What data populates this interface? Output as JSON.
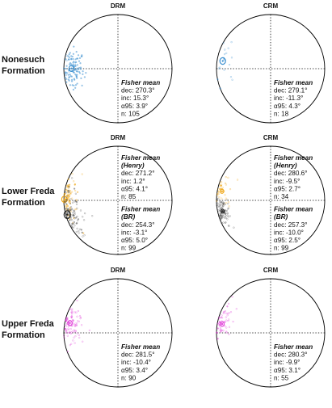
{
  "column_titles": [
    "DRM",
    "CRM"
  ],
  "formations": [
    {
      "label_lines": [
        "Nonesuch",
        "Formation"
      ],
      "panels": [
        {
          "title": "DRM",
          "color": "#3a8fd0",
          "stats": [
            {
              "header": "Fisher mean",
              "header2": "",
              "dec": "dec: 270.3°",
              "inc": "inc: 15.3°",
              "a95": "α95: 3.9°",
              "n": "n: 105",
              "mean_dec": 270.3,
              "mean_inc": 15.3,
              "alpha95": 3.9,
              "count": 105,
              "color": "#3a8fd0"
            }
          ]
        },
        {
          "title": "CRM",
          "color": "#3a8fd0",
          "stats": [
            {
              "header": "Fisher mean",
              "header2": "",
              "dec": "dec: 279.1°",
              "inc": "inc: -11.3°",
              "a95": "α95: 4.3°",
              "n": "n: 18",
              "mean_dec": 279.1,
              "mean_inc": -11.3,
              "alpha95": 4.3,
              "count": 18,
              "color": "#3a8fd0"
            }
          ]
        }
      ]
    },
    {
      "label_lines": [
        "Lower Freda",
        "Formation"
      ],
      "panels": [
        {
          "title": "DRM",
          "color": "#f0a818",
          "stats": [
            {
              "header": "Fisher mean",
              "header2": "(Henry)",
              "dec": "dec: 271.2°",
              "inc": "inc: 1.2°",
              "a95": "α95: 4.1°",
              "n": "n: 85",
              "mean_dec": 271.2,
              "mean_inc": 1.2,
              "alpha95": 4.1,
              "count": 85,
              "color": "#f0a818"
            },
            {
              "header": "Fisher mean",
              "header2": "(BR)",
              "dec": "dec: 254.3°",
              "inc": "inc: -3.1°",
              "a95": "α95: 5.0°",
              "n": "n: 99",
              "mean_dec": 254.3,
              "mean_inc": -3.1,
              "alpha95": 5.0,
              "count": 99,
              "color": "#555555"
            }
          ]
        },
        {
          "title": "CRM",
          "color": "#f0a818",
          "stats": [
            {
              "header": "Fisher mean",
              "header2": "(Henry)",
              "dec": "dec: 280.6°",
              "inc": "inc: -9.5°",
              "a95": "α95: 2.7°",
              "n": "n: 34",
              "mean_dec": 280.6,
              "mean_inc": -9.5,
              "alpha95": 2.7,
              "count": 34,
              "color": "#f0a818"
            },
            {
              "header": "Fisher mean",
              "header2": "(BR)",
              "dec": "dec: 257.3°",
              "inc": "inc: -10.0°",
              "a95": "α95: 2.5°",
              "n": "n: 99",
              "mean_dec": 257.3,
              "mean_inc": -10.0,
              "alpha95": 2.5,
              "count": 99,
              "color": "#555555"
            }
          ]
        }
      ]
    },
    {
      "label_lines": [
        "Upper Freda",
        "Formation"
      ],
      "panels": [
        {
          "title": "DRM",
          "color": "#e040d8",
          "stats": [
            {
              "header": "Fisher mean",
              "header2": "",
              "dec": "dec: 281.5°",
              "inc": "inc: -10.4°",
              "a95": "α95: 3.4°",
              "n": "n: 90",
              "mean_dec": 281.5,
              "mean_inc": -10.4,
              "alpha95": 3.4,
              "count": 90,
              "color": "#e040d8"
            }
          ]
        },
        {
          "title": "CRM",
          "color": "#e040d8",
          "stats": [
            {
              "header": "Fisher mean",
              "header2": "",
              "dec": "dec: 280.3°",
              "inc": "inc: -9.9°",
              "a95": "α95: 3.1°",
              "n": "n: 55",
              "mean_dec": 280.3,
              "mean_inc": -9.9,
              "alpha95": 3.1,
              "count": 55,
              "color": "#e040d8"
            }
          ]
        }
      ]
    }
  ]
}
